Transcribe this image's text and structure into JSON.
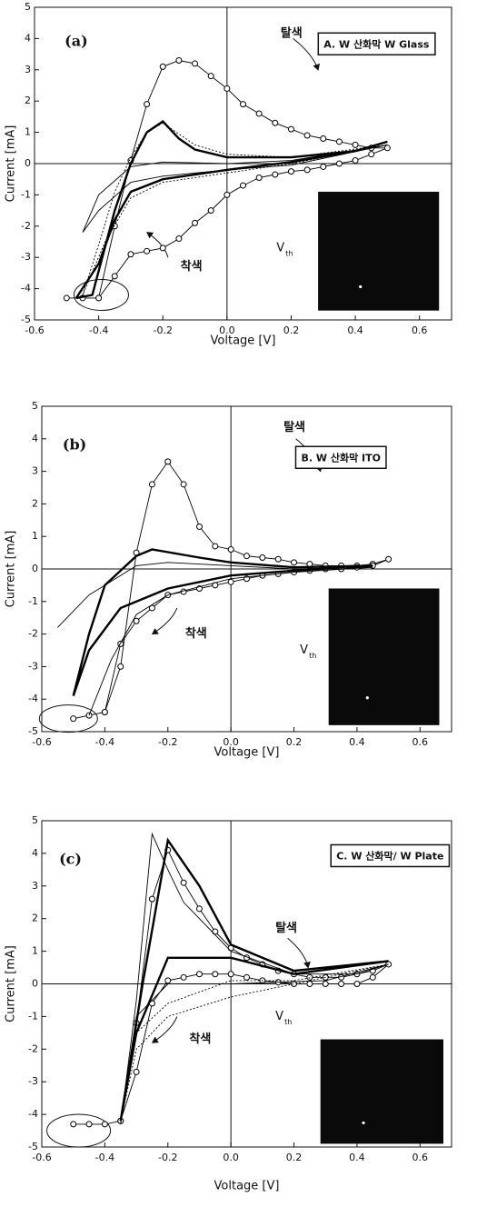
{
  "chart_data": [
    {
      "type": "line",
      "panel_label": "(a)",
      "box_label": "A. W 산화막 W Glass",
      "annotations": {
        "bleach": "탈색",
        "color": "착색",
        "vth_main": "V",
        "vth_sub": "th"
      },
      "x_label": "Voltage [V]",
      "y_label": "Current [mA]",
      "xlim": [
        -0.6,
        0.7
      ],
      "ylim": [
        -5,
        5
      ],
      "xticks": [
        -0.6,
        -0.4,
        -0.2,
        {
          "value": 0,
          "label": "0.0"
        },
        0.2,
        0.4,
        0.6
      ],
      "yticks": [
        -5,
        -4,
        -3,
        -2,
        -1,
        0,
        1,
        2,
        3,
        4,
        5
      ],
      "series": [
        {
          "color": "#000000",
          "style": "thin",
          "markers": true,
          "x": [
            -0.5,
            -0.45,
            -0.4,
            -0.35,
            -0.3,
            -0.25,
            -0.2,
            -0.15,
            -0.1,
            -0.05,
            0,
            0.05,
            0.1,
            0.15,
            0.2,
            0.25,
            0.3,
            0.35,
            0.4,
            0.45,
            0.5,
            0.45,
            0.4,
            0.35,
            0.3,
            0.25,
            0.2,
            0.15,
            0.1,
            0.05,
            0,
            -0.05,
            -0.1,
            -0.15,
            -0.2,
            -0.25,
            -0.3,
            -0.35,
            -0.4
          ],
          "values": [
            -4.3,
            -4.3,
            -4.3,
            -2.0,
            0.1,
            1.9,
            3.1,
            3.3,
            3.2,
            2.8,
            2.4,
            1.9,
            1.6,
            1.3,
            1.1,
            0.9,
            0.8,
            0.7,
            0.6,
            0.5,
            0.5,
            0.3,
            0.1,
            0,
            -0.1,
            -0.2,
            -0.25,
            -0.35,
            -0.45,
            -0.7,
            -1.0,
            -1.5,
            -1.9,
            -2.4,
            -2.7,
            -2.8,
            -2.9,
            -3.6,
            -4.3
          ]
        },
        {
          "color": "#000000",
          "style": "thick",
          "markers": false,
          "x": [
            -0.47,
            -0.42,
            -0.35,
            -0.3,
            -0.25,
            -0.2,
            -0.15,
            -0.1,
            0,
            0.2,
            0.4,
            0.5,
            0.4,
            0.2,
            0,
            -0.2,
            -0.3,
            -0.35,
            -0.4,
            -0.47
          ],
          "values": [
            -4.3,
            -4.2,
            -1.5,
            0,
            1.0,
            1.35,
            0.8,
            0.45,
            0.2,
            0.2,
            0.4,
            0.7,
            0.4,
            0.05,
            -0.2,
            -0.5,
            -0.9,
            -1.8,
            -3.2,
            -4.3
          ]
        },
        {
          "color": "#000000",
          "style": "dotted",
          "markers": false,
          "x": [
            -0.45,
            -0.4,
            -0.35,
            -0.3,
            -0.25,
            -0.2,
            -0.1,
            0,
            0.2,
            0.5,
            0.2,
            0,
            -0.2,
            -0.3,
            -0.38,
            -0.45
          ],
          "values": [
            -4.2,
            -2.6,
            -0.9,
            0.2,
            1.0,
            1.3,
            0.6,
            0.3,
            0.2,
            0.6,
            0.0,
            -0.3,
            -0.6,
            -1.1,
            -2.5,
            -4.2
          ]
        },
        {
          "color": "#000000",
          "style": "thin",
          "markers": false,
          "x": [
            -0.45,
            -0.4,
            -0.3,
            -0.2,
            0,
            0.2,
            0.5,
            0.2,
            0,
            -0.2,
            -0.3,
            -0.4,
            -0.45
          ],
          "values": [
            -2.2,
            -1.0,
            -0.1,
            0.05,
            0,
            0.1,
            0.6,
            -0.05,
            -0.2,
            -0.4,
            -0.6,
            -1.5,
            -2.2
          ]
        }
      ]
    },
    {
      "type": "line",
      "panel_label": "(b)",
      "box_label": "B. W 산화막 ITO",
      "annotations": {
        "bleach": "탈색",
        "color": "착색",
        "vth_main": "V",
        "vth_sub": "th"
      },
      "x_label": "Voltage [V]",
      "y_label": "Current [mA]",
      "xlim": [
        -0.6,
        0.7
      ],
      "ylim": [
        -5,
        5
      ],
      "xticks": [
        -0.6,
        -0.4,
        -0.2,
        {
          "value": 0,
          "label": "0.0"
        },
        0.2,
        0.4,
        0.6
      ],
      "yticks": [
        -5,
        -4,
        -3,
        -2,
        -1,
        0,
        1,
        2,
        3,
        4,
        5
      ],
      "series": [
        {
          "color": "#000000",
          "style": "thin",
          "markers": true,
          "x": [
            -0.5,
            -0.45,
            -0.4,
            -0.35,
            -0.3,
            -0.25,
            -0.2,
            -0.15,
            -0.1,
            -0.05,
            0,
            0.05,
            0.1,
            0.15,
            0.2,
            0.25,
            0.3,
            0.35,
            0.4,
            0.45,
            0.5,
            0.45,
            0.4,
            0.35,
            0.3,
            0.25,
            0.2,
            0.15,
            0.1,
            0.05,
            0,
            -0.05,
            -0.1,
            -0.15,
            -0.2,
            -0.25,
            -0.3,
            -0.35,
            -0.4
          ],
          "values": [
            -4.6,
            -4.5,
            -4.4,
            -3.0,
            0.5,
            2.6,
            3.3,
            2.6,
            1.3,
            0.7,
            0.6,
            0.4,
            0.35,
            0.3,
            0.2,
            0.15,
            0.1,
            0.1,
            0.1,
            0.15,
            0.3,
            0.1,
            0.05,
            0,
            0,
            -0.05,
            -0.1,
            -0.15,
            -0.2,
            -0.3,
            -0.4,
            -0.5,
            -0.6,
            -0.7,
            -0.8,
            -1.2,
            -1.6,
            -2.3,
            -4.4
          ]
        },
        {
          "color": "#000000",
          "style": "thick",
          "markers": false,
          "x": [
            -0.5,
            -0.45,
            -0.4,
            -0.3,
            -0.25,
            -0.1,
            0,
            0.2,
            0.45,
            0.2,
            0,
            -0.2,
            -0.35,
            -0.45,
            -0.5
          ],
          "values": [
            -3.9,
            -2.0,
            -0.5,
            0.4,
            0.6,
            0.35,
            0.2,
            0.05,
            0.1,
            -0.05,
            -0.2,
            -0.6,
            -1.2,
            -2.5,
            -3.9
          ]
        },
        {
          "color": "#000000",
          "style": "thin",
          "markers": false,
          "x": [
            -0.55,
            -0.45,
            -0.35,
            -0.3,
            -0.2,
            0,
            0.2,
            0.45,
            0.2,
            0,
            -0.2,
            -0.3,
            -0.38,
            -0.45
          ],
          "values": [
            -1.8,
            -0.8,
            -0.2,
            0.1,
            0.2,
            0.1,
            0.0,
            0.05,
            -0.1,
            -0.3,
            -0.8,
            -1.4,
            -2.8,
            -4.5
          ]
        }
      ]
    },
    {
      "type": "line",
      "panel_label": "(c)",
      "box_label": "C. W 산화막/ W Plate",
      "annotations": {
        "bleach": "탈색",
        "color": "착색",
        "vth_main": "V",
        "vth_sub": "th"
      },
      "x_label": "Voltage [V]",
      "y_label": "Current [mA]",
      "xlim": [
        -0.6,
        0.7
      ],
      "ylim": [
        -5,
        5
      ],
      "xticks": [
        -0.6,
        -0.4,
        -0.2,
        {
          "value": 0,
          "label": "0.0"
        },
        0.2,
        0.4,
        0.6
      ],
      "yticks": [
        -5,
        -4,
        -3,
        -2,
        -1,
        0,
        1,
        2,
        3,
        4,
        5
      ],
      "series": [
        {
          "color": "#000000",
          "style": "thin",
          "markers": true,
          "x": [
            -0.5,
            -0.45,
            -0.4,
            -0.35,
            -0.3,
            -0.25,
            -0.2,
            -0.15,
            -0.1,
            -0.05,
            0,
            0.05,
            0.1,
            0.15,
            0.2,
            0.25,
            0.3,
            0.35,
            0.4,
            0.45,
            0.5,
            0.45,
            0.4,
            0.35,
            0.3,
            0.25,
            0.2,
            0.15,
            0.1,
            0.05,
            0,
            -0.05,
            -0.1,
            -0.15,
            -0.2,
            -0.25,
            -0.3,
            -0.35
          ],
          "values": [
            -4.3,
            -4.3,
            -4.3,
            -4.2,
            -1.2,
            2.6,
            4.1,
            3.1,
            2.3,
            1.6,
            1.1,
            0.8,
            0.6,
            0.4,
            0.3,
            0.2,
            0.2,
            0.2,
            0.3,
            0.4,
            0.6,
            0.2,
            0,
            0,
            0,
            0,
            0,
            0.05,
            0.1,
            0.2,
            0.3,
            0.3,
            0.3,
            0.2,
            0.1,
            -0.6,
            -2.7,
            -4.2
          ]
        },
        {
          "color": "#000000",
          "style": "thin",
          "markers": false,
          "x": [
            -0.35,
            -0.3,
            -0.25,
            -0.2,
            -0.15,
            -0.1,
            0,
            0.2,
            0.4,
            0.5,
            0.3,
            0,
            -0.2,
            -0.3,
            -0.35
          ],
          "values": [
            -4.3,
            -0.5,
            4.6,
            3.5,
            2.5,
            2.0,
            1.0,
            0.3,
            0.3,
            0.6,
            0.1,
            0,
            0,
            -1.0,
            -4.3
          ]
        },
        {
          "color": "#000000",
          "style": "thick",
          "markers": false,
          "x": [
            -0.35,
            -0.28,
            -0.2,
            -0.1,
            0,
            0.2,
            0.5,
            0.2,
            0,
            -0.2,
            -0.3,
            -0.35
          ],
          "values": [
            -4.2,
            0,
            4.4,
            3.0,
            1.2,
            0.4,
            0.7,
            0.3,
            0.8,
            0.8,
            -1.5,
            -4.2
          ]
        },
        {
          "color": "#000000",
          "style": "dotted",
          "markers": false,
          "x": [
            -0.35,
            -0.3,
            -0.2,
            0,
            0.2,
            0.5,
            0.2,
            0,
            -0.2,
            -0.3,
            -0.35
          ],
          "values": [
            -4.2,
            -2.0,
            -1.0,
            -0.4,
            0.0,
            0.6,
            0.1,
            0.1,
            -0.6,
            -1.5,
            -4.2
          ]
        }
      ]
    }
  ]
}
